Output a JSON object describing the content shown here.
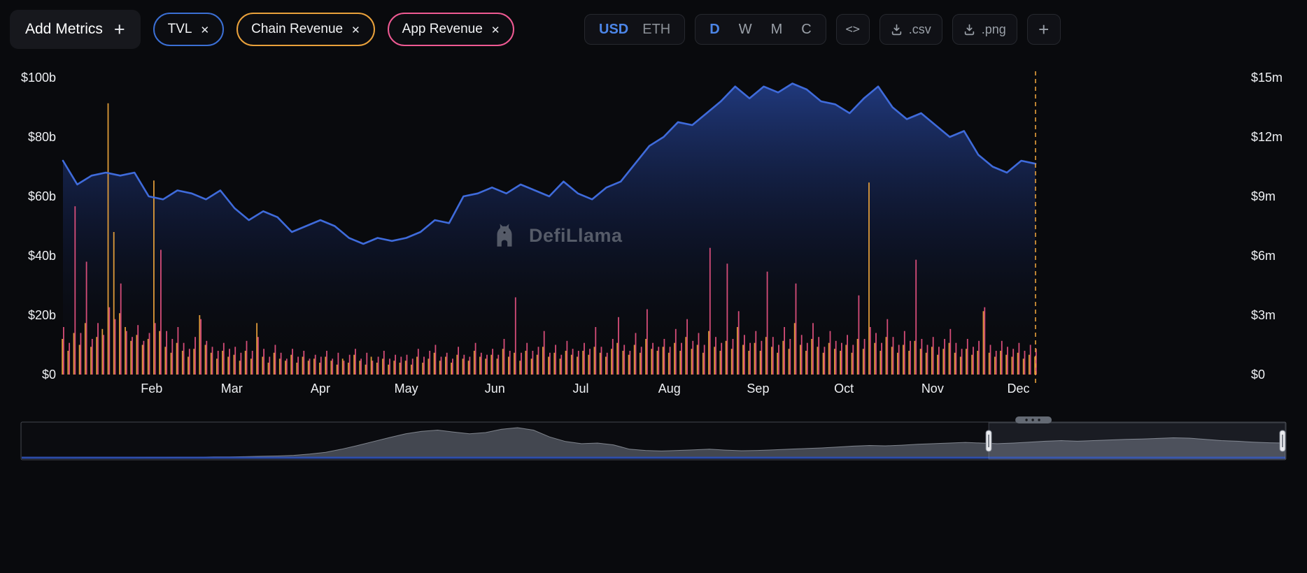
{
  "icons": {
    "close": "✕",
    "plus": "+",
    "dots": "⋯"
  },
  "toolbar": {
    "add_metrics": {
      "label": "Add Metrics"
    },
    "metrics": [
      {
        "label": "TVL",
        "color": "#3b6fd4"
      },
      {
        "label": "Chain Revenue",
        "color": "#e9a13b"
      },
      {
        "label": "App Revenue",
        "color": "#ef5a93"
      }
    ],
    "currency": {
      "options": [
        "USD",
        "ETH"
      ],
      "selected": "USD"
    },
    "intervals": {
      "options": [
        "D",
        "W",
        "M",
        "C"
      ],
      "selected": "D"
    },
    "embed_label": "<>",
    "csv_label": ".csv",
    "png_label": ".png",
    "add_chart_label": "+"
  },
  "watermark": {
    "label": "DefiLlama"
  },
  "colors": {
    "background": "#090a0d",
    "accent_blue": "#4c86e8",
    "tvl_line": "#3f6bdb",
    "chain_revenue": "#e9a13b",
    "app_revenue": "#e0507e",
    "today_marker": "#e9a13b"
  },
  "chart_data": {
    "type": "mixed",
    "title": "",
    "legend_position": "top-left-pills",
    "grid": false,
    "x_axis": {
      "tick_labels": [
        "Feb",
        "Mar",
        "Apr",
        "May",
        "Jun",
        "Jul",
        "Aug",
        "Sep",
        "Oct",
        "Nov",
        "Dec"
      ],
      "tick_days": [
        31,
        59,
        90,
        120,
        151,
        181,
        212,
        243,
        273,
        304,
        334
      ],
      "days_span": 340
    },
    "left_axis": {
      "tick_labels": [
        "$0",
        "$20b",
        "$40b",
        "$60b",
        "$80b",
        "$100b"
      ],
      "tick_values": [
        0,
        20,
        40,
        60,
        80,
        100
      ],
      "range": [
        0,
        100
      ],
      "unit": "billion USD"
    },
    "right_axis": {
      "tick_labels": [
        "$0",
        "$3m",
        "$6m",
        "$9m",
        "$12m",
        "$15m"
      ],
      "tick_values": [
        0,
        3,
        6,
        9,
        12,
        15
      ],
      "range": [
        0,
        15
      ],
      "unit": "million USD"
    },
    "series": [
      {
        "name": "TVL",
        "type": "line-area",
        "axis": "left",
        "unit": "billion USD",
        "color": "#3f6bdb",
        "step_days": 5,
        "values": [
          72,
          64,
          67,
          68,
          67,
          68,
          60,
          59,
          62,
          61,
          59,
          62,
          56,
          52,
          55,
          53,
          48,
          50,
          52,
          50,
          46,
          44,
          46,
          45,
          46,
          48,
          52,
          51,
          60,
          61,
          63,
          61,
          64,
          62,
          60,
          65,
          61,
          59,
          63,
          65,
          71,
          77,
          80,
          85,
          84,
          88,
          92,
          97,
          93,
          97,
          95,
          98,
          96,
          92,
          91,
          88,
          93,
          97,
          90,
          86,
          88,
          84,
          80,
          82,
          74,
          70,
          68,
          72,
          71
        ]
      },
      {
        "name": "Chain Revenue",
        "type": "bar",
        "axis": "right",
        "unit": "million USD",
        "color": "#e9a13b",
        "step_days": 2,
        "values": [
          1.8,
          1.2,
          2.1,
          1.5,
          2.6,
          1.4,
          1.9,
          2.3,
          13.7,
          7.2,
          3.1,
          2.4,
          1.7,
          2.0,
          1.5,
          1.8,
          9.8,
          2.2,
          1.4,
          1.1,
          1.6,
          1.2,
          0.9,
          1.3,
          3.0,
          1.5,
          1.1,
          0.8,
          1.2,
          0.9,
          1.0,
          0.7,
          1.2,
          0.8,
          2.6,
          0.9,
          0.6,
          1.1,
          0.8,
          0.7,
          1.0,
          0.6,
          0.9,
          0.7,
          0.8,
          0.6,
          0.9,
          0.7,
          0.5,
          0.8,
          0.6,
          1.0,
          0.7,
          0.5,
          0.9,
          0.6,
          0.8,
          0.5,
          0.7,
          0.6,
          0.7,
          0.5,
          0.9,
          0.6,
          0.8,
          1.1,
          0.7,
          0.9,
          0.6,
          1.0,
          0.8,
          0.7,
          1.2,
          0.9,
          0.8,
          1.0,
          0.8,
          1.3,
          0.9,
          1.1,
          0.7,
          1.2,
          0.8,
          1.0,
          1.4,
          0.9,
          1.1,
          0.8,
          1.2,
          1.0,
          0.9,
          1.2,
          1.0,
          1.4,
          1.1,
          0.9,
          1.3,
          1.6,
          1.2,
          1.0,
          1.5,
          1.1,
          1.8,
          1.3,
          1.2,
          1.4,
          1.1,
          1.6,
          1.2,
          1.9,
          1.3,
          1.5,
          1.1,
          2.2,
          1.4,
          1.2,
          1.7,
          1.3,
          2.4,
          1.5,
          1.2,
          1.6,
          1.2,
          1.9,
          1.4,
          1.1,
          1.7,
          1.3,
          2.6,
          1.5,
          1.2,
          1.8,
          1.4,
          1.1,
          1.6,
          1.3,
          1.2,
          1.5,
          1.1,
          1.8,
          1.3,
          9.7,
          1.6,
          1.2,
          1.9,
          1.4,
          1.1,
          1.5,
          1.2,
          1.7,
          1.3,
          1.1,
          1.4,
          1.0,
          1.3,
          1.6,
          1.1,
          0.9,
          1.3,
          1.0,
          1.2,
          3.2,
          1.1,
          0.9,
          1.2,
          1.0,
          0.9,
          1.1,
          0.8,
          1.0,
          0.9
        ]
      },
      {
        "name": "App Revenue",
        "type": "bar",
        "axis": "right",
        "unit": "million USD",
        "color": "#e0507e",
        "step_days": 2,
        "values": [
          2.4,
          1.6,
          8.5,
          2.1,
          5.7,
          1.8,
          2.6,
          2.0,
          3.4,
          2.8,
          4.6,
          2.2,
          1.9,
          2.5,
          1.7,
          2.1,
          2.6,
          6.3,
          2.2,
          1.8,
          2.4,
          1.6,
          1.3,
          1.9,
          2.8,
          1.7,
          1.4,
          1.2,
          1.6,
          1.3,
          1.4,
          1.1,
          1.7,
          1.2,
          1.9,
          1.3,
          0.9,
          1.5,
          1.1,
          0.8,
          1.3,
          0.9,
          1.2,
          0.8,
          1.0,
          0.9,
          1.2,
          0.8,
          1.1,
          0.7,
          1.0,
          1.3,
          0.8,
          1.1,
          0.7,
          0.9,
          1.2,
          0.8,
          1.0,
          0.9,
          1.0,
          0.8,
          1.3,
          0.9,
          1.2,
          1.5,
          0.9,
          1.1,
          0.8,
          1.4,
          1.0,
          0.9,
          1.6,
          1.1,
          1.0,
          1.3,
          1.0,
          1.8,
          1.2,
          3.9,
          1.1,
          1.6,
          1.2,
          1.4,
          2.2,
          1.1,
          1.5,
          1.0,
          1.7,
          1.3,
          1.2,
          1.6,
          1.3,
          2.4,
          1.4,
          1.1,
          1.8,
          2.9,
          1.5,
          1.2,
          2.1,
          1.4,
          3.3,
          1.6,
          1.4,
          1.8,
          1.4,
          2.3,
          1.6,
          2.8,
          1.7,
          2.1,
          1.5,
          6.4,
          1.9,
          1.6,
          5.6,
          1.8,
          3.2,
          2.0,
          1.6,
          2.2,
          1.7,
          5.2,
          1.9,
          1.5,
          2.4,
          1.8,
          4.6,
          2.0,
          1.6,
          2.6,
          1.9,
          1.4,
          2.2,
          1.7,
          1.6,
          2.0,
          1.5,
          4.0,
          1.8,
          2.4,
          2.1,
          1.6,
          2.8,
          1.9,
          1.5,
          2.2,
          1.7,
          5.8,
          1.8,
          1.5,
          1.9,
          1.4,
          1.8,
          2.3,
          1.6,
          1.3,
          1.8,
          1.4,
          1.7,
          3.4,
          1.5,
          1.2,
          1.7,
          1.4,
          1.3,
          1.6,
          1.2,
          1.5,
          1.3
        ]
      }
    ],
    "today_marker": {
      "color": "#e9a13b",
      "style": "dashed",
      "position_day": 340
    }
  },
  "navigator": {
    "description": "all-time TVL silhouette with zoom window over the last year",
    "max": 100,
    "values": [
      1,
      1,
      1,
      1,
      2,
      2,
      2,
      2,
      3,
      3,
      4,
      4,
      5,
      5,
      6,
      7,
      8,
      10,
      14,
      20,
      30,
      42,
      55,
      68,
      80,
      88,
      92,
      86,
      80,
      84,
      95,
      100,
      92,
      70,
      55,
      48,
      50,
      44,
      30,
      26,
      24,
      26,
      28,
      30,
      27,
      25,
      26,
      28,
      30,
      32,
      34,
      37,
      40,
      42,
      41,
      43,
      46,
      48,
      50,
      52,
      50,
      48,
      50,
      53,
      56,
      58,
      56,
      58,
      60,
      62,
      63,
      65,
      67,
      66,
      62,
      58,
      56,
      53,
      51,
      50
    ],
    "selection": {
      "start": 0.765,
      "end": 1.0
    }
  }
}
